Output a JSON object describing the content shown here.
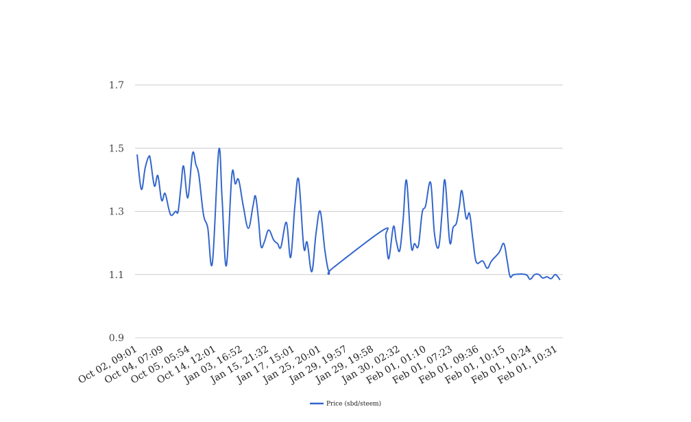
{
  "chart_data": {
    "type": "line",
    "title": "",
    "xlabel": "",
    "ylabel": "",
    "ylim": [
      0.9,
      1.7
    ],
    "yticks": [
      "0.9",
      "1.1",
      "1.3",
      "1.5",
      "1.7"
    ],
    "grid": true,
    "legend_position": "bottom",
    "x_tick_labels": [
      "Oct 02, 09:01",
      "Oct 04, 07:09",
      "Oct 05, 05:54",
      "Oct 14, 12:01",
      "Jan 03, 16:52",
      "Jan 15, 21:32",
      "Jan 17, 15:01",
      "Jan 25, 20:01",
      "Jan 29, 19:57",
      "Jan 29, 19:58",
      "Jan 30, 02:32",
      "Feb 01, 01:10",
      "Feb 01, 07:23",
      "Feb 01, 09:36",
      "Feb 01, 10:15",
      "Feb 01, 10:24",
      "Feb 01, 10:31"
    ],
    "x_range": [
      0,
      100
    ],
    "series": [
      {
        "name": "Price (sbd/steem)",
        "color": "#3366cc",
        "points": [
          [
            0,
            1.48
          ],
          [
            1,
            1.37
          ],
          [
            1.9,
            1.437
          ],
          [
            2.8,
            1.474
          ],
          [
            3.2,
            1.459
          ],
          [
            4.1,
            1.38
          ],
          [
            4.9,
            1.413
          ],
          [
            5.8,
            1.335
          ],
          [
            6.6,
            1.357
          ],
          [
            7.5,
            1.307
          ],
          [
            8.1,
            1.287
          ],
          [
            9.1,
            1.3
          ],
          [
            9.7,
            1.3
          ],
          [
            10.4,
            1.383
          ],
          [
            11,
            1.443
          ],
          [
            12,
            1.343
          ],
          [
            13.1,
            1.483
          ],
          [
            13.9,
            1.448
          ],
          [
            14.6,
            1.415
          ],
          [
            15.7,
            1.289
          ],
          [
            16.7,
            1.248
          ],
          [
            17.8,
            1.137
          ],
          [
            19.3,
            1.493
          ],
          [
            20.1,
            1.339
          ],
          [
            21.1,
            1.128
          ],
          [
            22.4,
            1.415
          ],
          [
            23.2,
            1.387
          ],
          [
            24,
            1.4
          ],
          [
            25.1,
            1.317
          ],
          [
            26.3,
            1.246
          ],
          [
            27.4,
            1.317
          ],
          [
            28,
            1.348
          ],
          [
            28.7,
            1.274
          ],
          [
            29.3,
            1.189
          ],
          [
            30.1,
            1.204
          ],
          [
            31.1,
            1.241
          ],
          [
            32.3,
            1.209
          ],
          [
            33.2,
            1.198
          ],
          [
            34,
            1.187
          ],
          [
            35.3,
            1.265
          ],
          [
            36.3,
            1.154
          ],
          [
            37.3,
            1.317
          ],
          [
            38.2,
            1.4
          ],
          [
            39.4,
            1.187
          ],
          [
            40.2,
            1.202
          ],
          [
            41.3,
            1.109
          ],
          [
            42.3,
            1.23
          ],
          [
            43.3,
            1.3
          ],
          [
            44.4,
            1.176
          ],
          [
            45.4,
            1.107
          ],
          [
            46.4,
            1.122
          ],
          [
            58.2,
            1.241
          ],
          [
            58.8,
            1.22
          ],
          [
            59.5,
            1.15
          ],
          [
            60.6,
            1.252
          ],
          [
            61.3,
            1.204
          ],
          [
            62.1,
            1.176
          ],
          [
            62.9,
            1.274
          ],
          [
            63.7,
            1.398
          ],
          [
            64.8,
            1.191
          ],
          [
            65.6,
            1.198
          ],
          [
            66.5,
            1.191
          ],
          [
            67.4,
            1.296
          ],
          [
            68.2,
            1.317
          ],
          [
            69.4,
            1.391
          ],
          [
            70.3,
            1.23
          ],
          [
            71.3,
            1.187
          ],
          [
            72.1,
            1.296
          ],
          [
            72.8,
            1.398
          ],
          [
            73.9,
            1.204
          ],
          [
            74.7,
            1.248
          ],
          [
            75.5,
            1.263
          ],
          [
            76.2,
            1.317
          ],
          [
            76.8,
            1.365
          ],
          [
            77.8,
            1.278
          ],
          [
            78.6,
            1.293
          ],
          [
            79.4,
            1.209
          ],
          [
            80.2,
            1.139
          ],
          [
            81.7,
            1.143
          ],
          [
            82.8,
            1.12
          ],
          [
            83.8,
            1.143
          ],
          [
            85.6,
            1.17
          ],
          [
            86.7,
            1.198
          ],
          [
            87.5,
            1.143
          ],
          [
            88.2,
            1.093
          ],
          [
            89.1,
            1.1
          ],
          [
            91.9,
            1.1
          ],
          [
            92.9,
            1.085
          ],
          [
            94,
            1.1
          ],
          [
            95,
            1.1
          ],
          [
            95.9,
            1.089
          ],
          [
            96.9,
            1.093
          ],
          [
            97.9,
            1.087
          ],
          [
            98.9,
            1.1
          ],
          [
            100,
            1.083
          ]
        ]
      }
    ]
  }
}
